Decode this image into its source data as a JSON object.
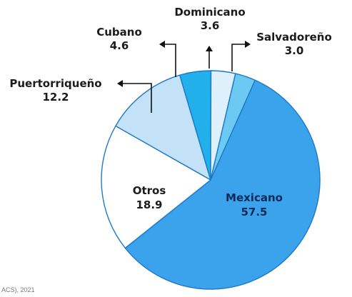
{
  "colors": {
    "outline": "#1e78c8",
    "arrow": "#111111"
  },
  "chart_data": {
    "type": "pie",
    "title": "",
    "slices": [
      {
        "label": "Mexicano",
        "value": 57.5,
        "color": "#3aa3ec"
      },
      {
        "label": "Otros",
        "value": 18.9,
        "color": "#ffffff"
      },
      {
        "label": "Puertorriqueño",
        "value": 12.2,
        "color": "#c3e2f8"
      },
      {
        "label": "Cubano",
        "value": 4.6,
        "color": "#22b0ea"
      },
      {
        "label": "Dominicano",
        "value": 3.6,
        "color": "#ddf0fb"
      },
      {
        "label": "Salvadoreño",
        "value": 3.0,
        "color": "#6ccaf2"
      }
    ],
    "value_text": {
      "Mexicano": "57.5",
      "Otros": "18.9",
      "Puertorriqueño": "12.2",
      "Cubano": "4.6",
      "Dominicano": "3.6",
      "Salvadoreño": "3.0"
    }
  },
  "source_note": "ACS), 2021"
}
